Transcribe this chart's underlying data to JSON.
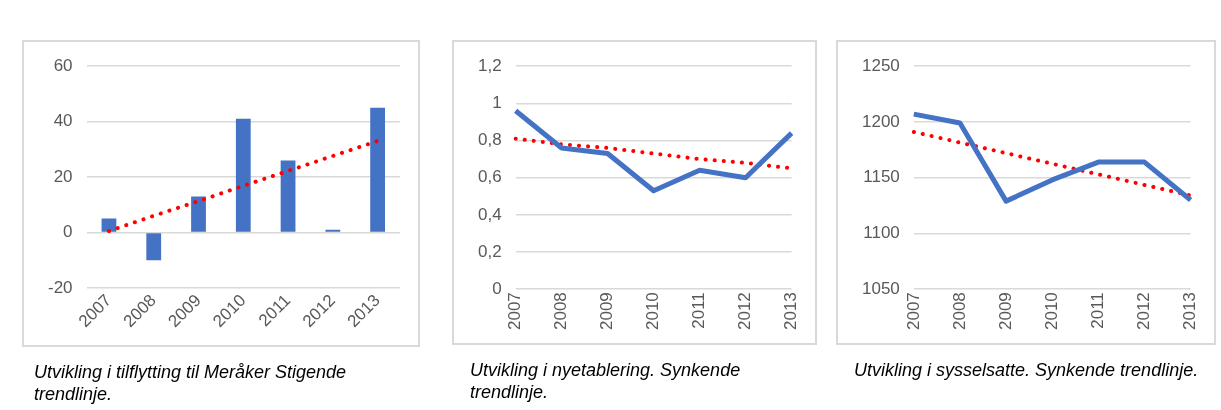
{
  "chart_data": [
    {
      "type": "bar",
      "categories": [
        "2007",
        "2008",
        "2009",
        "2010",
        "2011",
        "2012",
        "2013"
      ],
      "series": [
        {
          "type": "bar",
          "color": "#4472c4",
          "values": [
            5,
            -10,
            13,
            41,
            26,
            1,
            45
          ]
        },
        {
          "type": "line",
          "color": "#ff0000",
          "line_style": "dotted",
          "values": [
            0.5,
            6,
            11.3,
            16.8,
            22.2,
            27.6,
            33
          ]
        }
      ],
      "ylim": [
        -20,
        60
      ],
      "yticks": [
        -20,
        0,
        20,
        40,
        60
      ],
      "grid": "y",
      "marker": "none",
      "annotations": [
        "Utvikling i tilflytting til Meråker Stigende trendlinje."
      ]
    },
    {
      "type": "line",
      "categories": [
        "2007",
        "2008",
        "2009",
        "2010",
        "2011",
        "2012",
        "2013"
      ],
      "series": [
        {
          "type": "line",
          "color": "#4472c4",
          "values": [
            0.96,
            0.76,
            0.73,
            0.53,
            0.64,
            0.6,
            0.84
          ]
        },
        {
          "type": "line",
          "color": "#ff0000",
          "line_style": "dotted",
          "values": [
            0.81,
            0.78,
            0.76,
            0.73,
            0.7,
            0.68,
            0.65
          ]
        }
      ],
      "ylim": [
        0,
        1.2
      ],
      "yticks": [
        0,
        {
          "value": 0.2,
          "label": "0,2"
        },
        {
          "value": 0.4,
          "label": "0,4"
        },
        {
          "value": 0.6,
          "label": "0,6"
        },
        {
          "value": 0.8,
          "label": "0,8"
        },
        1,
        {
          "value": 1.2,
          "label": "1,2"
        }
      ],
      "grid": "y",
      "marker": "none",
      "annotations": [
        "Utvikling i nyetablering. Synkende trendlinje."
      ]
    },
    {
      "type": "line",
      "categories": [
        "2007",
        "2008",
        "2009",
        "2010",
        "2011",
        "2012",
        "2013"
      ],
      "series": [
        {
          "type": "line",
          "color": "#4472c4",
          "values": [
            1207,
            1199,
            1129,
            1148,
            1164,
            1164,
            1130
          ]
        },
        {
          "type": "line",
          "color": "#ff0000",
          "line_style": "dotted",
          "values": [
            1191,
            1181.5,
            1172,
            1162.5,
            1153,
            1143.5,
            1134
          ]
        }
      ],
      "ylim": [
        1050,
        1250
      ],
      "yticks": [
        1050,
        1100,
        1150,
        1200,
        1250
      ],
      "grid": "y",
      "marker": "none",
      "annotations": [
        "Utvikling i sysselsatte. Synkende trendlinje."
      ]
    }
  ]
}
